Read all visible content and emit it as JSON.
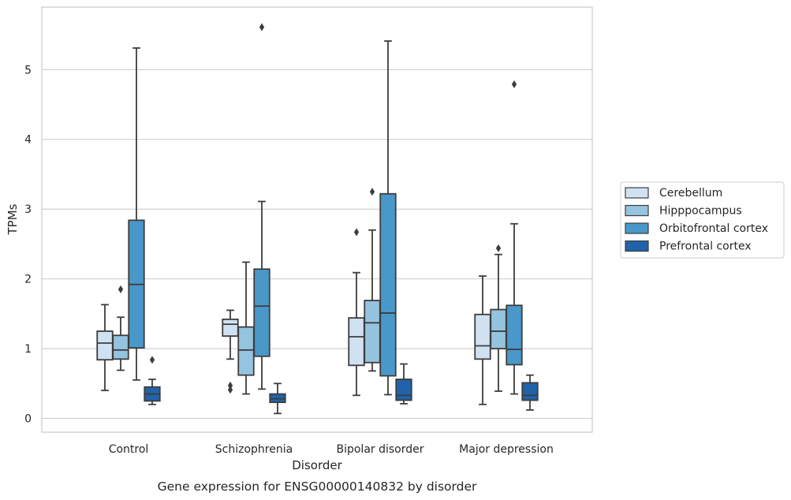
{
  "caption": "Gene expression for ENSG00000140832 by disorder",
  "chart_data": {
    "type": "box",
    "title": "",
    "xlabel": "Disorder",
    "ylabel": "TPMs",
    "ylim": [
      -0.2,
      5.9
    ],
    "yticks": [
      0,
      1,
      2,
      3,
      4,
      5
    ],
    "grid": "horizontal",
    "legend_position": "right",
    "categories": [
      "Control",
      "Schizophrenia",
      "Bipolar disorder",
      "Major depression"
    ],
    "series": [
      {
        "name": "Cerebellum",
        "color": "#d0e1f2",
        "boxes": [
          {
            "whislo": 0.4,
            "q1": 0.84,
            "med": 1.08,
            "q3": 1.25,
            "whishi": 1.63,
            "fliers": []
          },
          {
            "whislo": 0.85,
            "q1": 1.18,
            "med": 1.35,
            "q3": 1.42,
            "whishi": 1.55,
            "fliers": [
              0.41,
              0.47
            ]
          },
          {
            "whislo": 0.33,
            "q1": 0.76,
            "med": 1.17,
            "q3": 1.44,
            "whishi": 2.09,
            "fliers": [
              2.67
            ]
          },
          {
            "whislo": 0.2,
            "q1": 0.85,
            "med": 1.04,
            "q3": 1.49,
            "whishi": 2.04,
            "fliers": []
          }
        ]
      },
      {
        "name": "Hipppocampus",
        "color": "#94c4df",
        "boxes": [
          {
            "whislo": 0.69,
            "q1": 0.85,
            "med": 0.98,
            "q3": 1.19,
            "whishi": 1.45,
            "fliers": [
              1.85
            ]
          },
          {
            "whislo": 0.35,
            "q1": 0.62,
            "med": 0.98,
            "q3": 1.31,
            "whishi": 2.24,
            "fliers": []
          },
          {
            "whislo": 0.68,
            "q1": 0.8,
            "med": 1.37,
            "q3": 1.69,
            "whishi": 2.7,
            "fliers": [
              3.25
            ]
          },
          {
            "whislo": 0.39,
            "q1": 1.0,
            "med": 1.25,
            "q3": 1.56,
            "whishi": 2.35,
            "fliers": [
              2.44
            ]
          }
        ]
      },
      {
        "name": "Orbitofrontal cortex",
        "color": "#4a98c9",
        "boxes": [
          {
            "whislo": 0.55,
            "q1": 1.01,
            "med": 1.92,
            "q3": 2.84,
            "whishi": 5.31,
            "fliers": []
          },
          {
            "whislo": 0.42,
            "q1": 0.89,
            "med": 1.61,
            "q3": 2.14,
            "whishi": 3.11,
            "fliers": [
              5.61
            ]
          },
          {
            "whislo": 0.34,
            "q1": 0.61,
            "med": 1.51,
            "q3": 3.22,
            "whishi": 5.41,
            "fliers": []
          },
          {
            "whislo": 0.35,
            "q1": 0.77,
            "med": 0.99,
            "q3": 1.62,
            "whishi": 2.79,
            "fliers": [
              4.79
            ]
          }
        ]
      },
      {
        "name": "Prefrontal cortex",
        "color": "#2163aa",
        "boxes": [
          {
            "whislo": 0.2,
            "q1": 0.25,
            "med": 0.35,
            "q3": 0.45,
            "whishi": 0.56,
            "fliers": [
              0.84
            ]
          },
          {
            "whislo": 0.07,
            "q1": 0.23,
            "med": 0.28,
            "q3": 0.35,
            "whishi": 0.5,
            "fliers": []
          },
          {
            "whislo": 0.21,
            "q1": 0.26,
            "med": 0.33,
            "q3": 0.56,
            "whishi": 0.78,
            "fliers": []
          },
          {
            "whislo": 0.12,
            "q1": 0.26,
            "med": 0.33,
            "q3": 0.51,
            "whishi": 0.62,
            "fliers": []
          }
        ]
      }
    ]
  }
}
